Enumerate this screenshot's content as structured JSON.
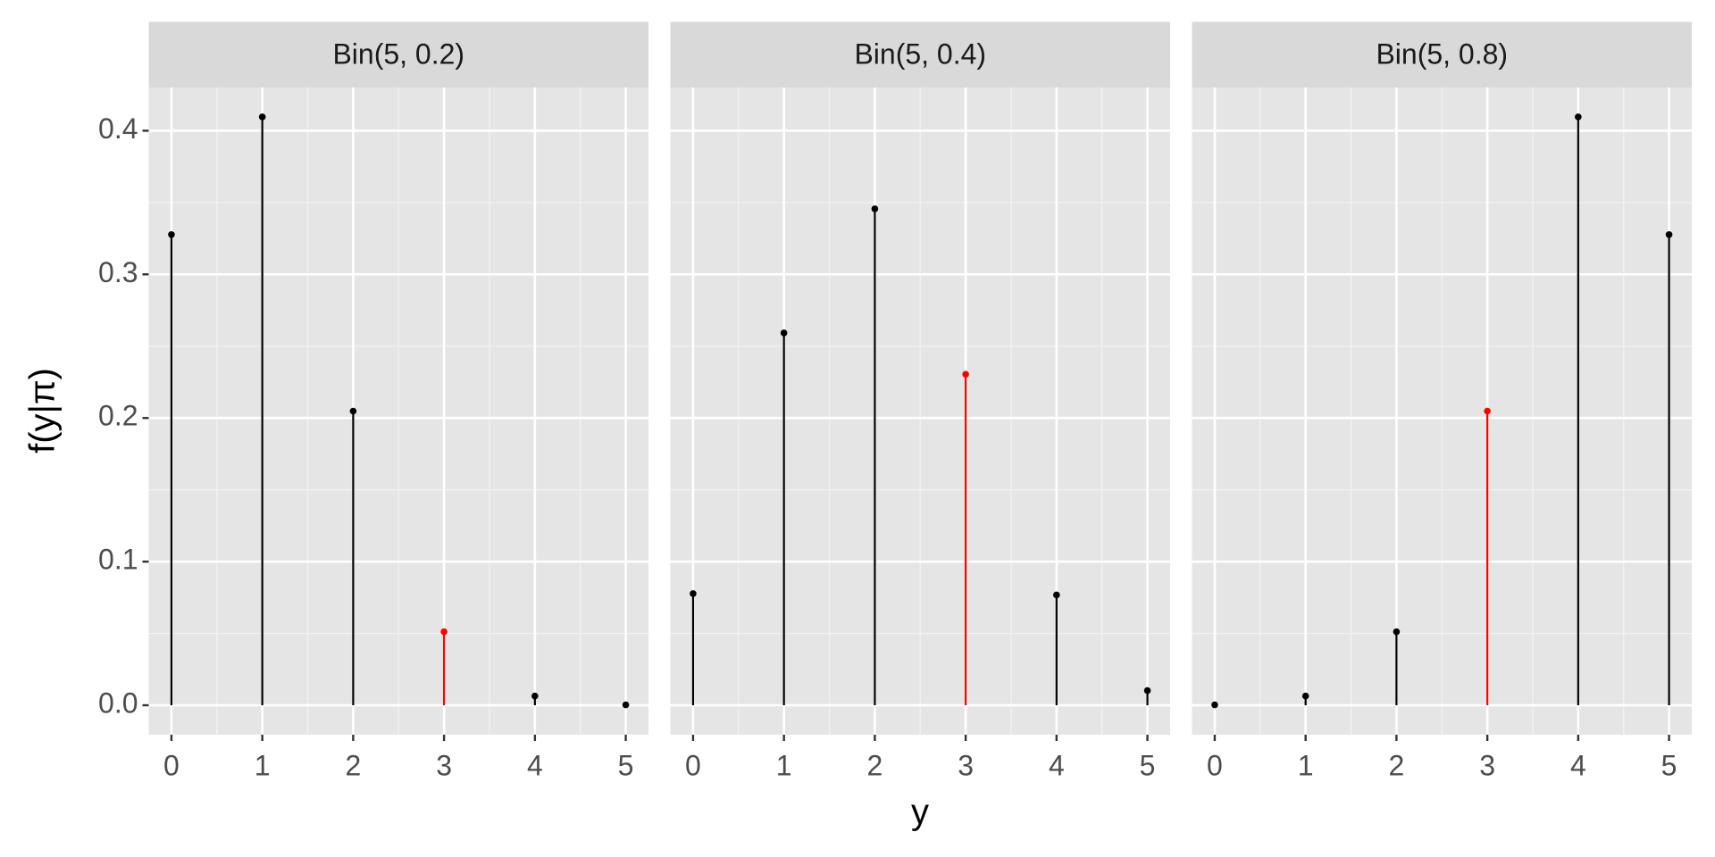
{
  "chart_data": {
    "type": "lollipop",
    "xlabel": "y",
    "ylabel": "f(y|π)",
    "x": [
      0,
      1,
      2,
      3,
      4,
      5
    ],
    "xlim": [
      -0.25,
      5.25
    ],
    "xticks": [
      0,
      1,
      2,
      3,
      4,
      5
    ],
    "ylim": [
      -0.0205,
      0.4301
    ],
    "yticks": [
      {
        "value": 0,
        "label": "0.0"
      },
      0.1,
      0.2,
      0.3,
      0.4
    ],
    "grid": true,
    "series": [
      {
        "name": "Bin(5, 0.2)",
        "values": [
          0.32768,
          0.4096,
          0.2048,
          0.0512,
          0.0064,
          0.00032
        ],
        "colors": [
          "black",
          "black",
          "black",
          "red",
          "black",
          "black"
        ]
      },
      {
        "name": "Bin(5, 0.4)",
        "values": [
          0.07776,
          0.2592,
          0.3456,
          0.2304,
          0.0768,
          0.01024
        ],
        "colors": [
          "black",
          "black",
          "black",
          "red",
          "black",
          "black"
        ]
      },
      {
        "name": "Bin(5, 0.8)",
        "values": [
          0.00032,
          0.0064,
          0.0512,
          0.2048,
          0.4096,
          0.32768
        ],
        "colors": [
          "black",
          "black",
          "black",
          "red",
          "black",
          "black"
        ]
      }
    ]
  }
}
